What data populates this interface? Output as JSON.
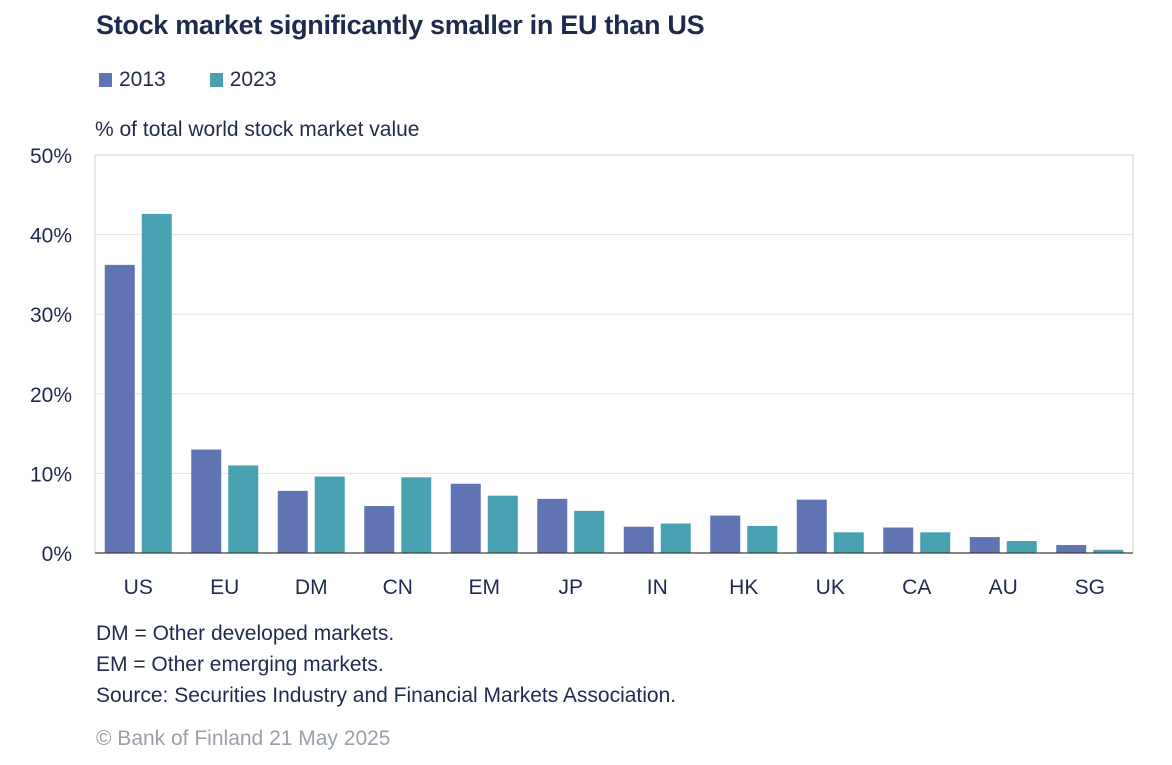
{
  "chart_data": {
    "type": "bar",
    "title": "Stock market significantly smaller in EU than US",
    "ylabel": "% of total world stock market value",
    "xlabel": "",
    "categories": [
      "US",
      "EU",
      "DM",
      "CN",
      "EM",
      "JP",
      "IN",
      "HK",
      "UK",
      "CA",
      "AU",
      "SG"
    ],
    "series": [
      {
        "name": "2013",
        "color": "#6074b3",
        "values": [
          36.2,
          13.0,
          7.8,
          5.9,
          8.7,
          6.8,
          3.3,
          4.7,
          6.7,
          3.2,
          2.0,
          1.0
        ]
      },
      {
        "name": "2023",
        "color": "#47a1b1",
        "values": [
          42.6,
          11.0,
          9.6,
          9.5,
          7.2,
          5.3,
          3.7,
          3.4,
          2.6,
          2.6,
          1.5,
          0.4
        ]
      }
    ],
    "ylim": [
      0,
      50
    ],
    "yticks": [
      0,
      10,
      20,
      30,
      40,
      50
    ],
    "ytick_labels": [
      "0%",
      "10%",
      "20%",
      "30%",
      "40%",
      "50%"
    ],
    "grid": true,
    "legend_position": "top-left"
  },
  "notes": {
    "dm": "DM = Other developed markets.",
    "em": "EM = Other emerging markets.",
    "source": "Source: Securities Industry and Financial Markets Association."
  },
  "copyright": "© Bank of Finland 21 May 2025"
}
